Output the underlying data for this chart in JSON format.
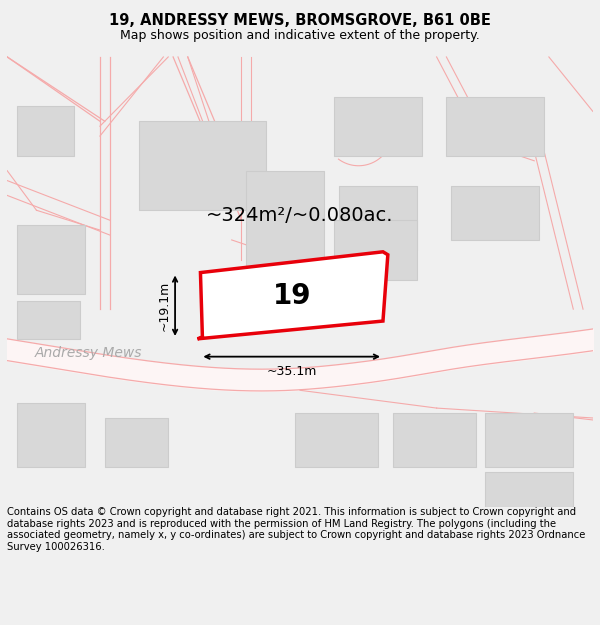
{
  "title_line1": "19, ANDRESSY MEWS, BROMSGROVE, B61 0BE",
  "title_line2": "Map shows position and indicative extent of the property.",
  "footer_text": "Contains OS data © Crown copyright and database right 2021. This information is subject to Crown copyright and database rights 2023 and is reproduced with the permission of HM Land Registry. The polygons (including the associated geometry, namely x, y co-ordinates) are subject to Crown copyright and database rights 2023 Ordnance Survey 100026316.",
  "area_label": "~324m²/~0.080ac.",
  "property_number": "19",
  "width_label": "~35.1m",
  "height_label": "~19.1m",
  "bg_color": "#f0f0f0",
  "map_bg": "#ffffff",
  "road_color": "#f5aaaa",
  "building_fill": "#d8d8d8",
  "building_edge": "#cccccc",
  "property_fill": "#ffffff",
  "property_edge": "#e8000a",
  "dim_color": "#000000",
  "road_label_color": "#aaaaaa",
  "title_fontsize": 10.5,
  "subtitle_fontsize": 9,
  "footer_fontsize": 7.2,
  "area_fontsize": 14,
  "prop_label_fontsize": 20,
  "dim_fontsize": 9,
  "road_label_fontsize": 10
}
